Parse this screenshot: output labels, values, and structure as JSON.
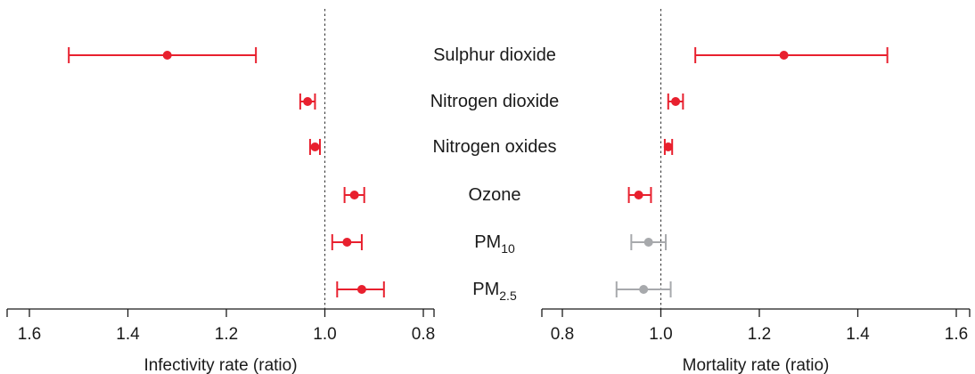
{
  "chart_data": {
    "type": "scatter",
    "categories": [
      {
        "label": "Sulphur dioxide"
      },
      {
        "label": "Nitrogen dioxide"
      },
      {
        "label": "Nitrogen oxides"
      },
      {
        "label": "Ozone"
      },
      {
        "label": "PM",
        "sub": "10"
      },
      {
        "label": "PM",
        "sub": "2.5"
      }
    ],
    "panels": [
      {
        "xlabel": "Infectivity rate (ratio)",
        "axis_reversed": true,
        "xlim": [
          0.8,
          1.6
        ],
        "ticks": [
          {
            "value": 1.6,
            "label": "1.6"
          },
          {
            "value": 1.4,
            "label": "1.4"
          },
          {
            "value": 1.2,
            "label": "1.2"
          },
          {
            "value": 1.0,
            "label": "1.0"
          },
          {
            "value": 0.8,
            "label": "0.8"
          }
        ],
        "reference_line": 1.0,
        "estimates": [
          {
            "value": 1.32,
            "lower": 1.14,
            "upper": 1.52,
            "significant": true
          },
          {
            "value": 1.035,
            "lower": 1.02,
            "upper": 1.05,
            "significant": true
          },
          {
            "value": 1.02,
            "lower": 1.01,
            "upper": 1.03,
            "significant": true
          },
          {
            "value": 0.94,
            "lower": 0.92,
            "upper": 0.96,
            "significant": true
          },
          {
            "value": 0.955,
            "lower": 0.925,
            "upper": 0.985,
            "significant": true
          },
          {
            "value": 0.925,
            "lower": 0.88,
            "upper": 0.975,
            "significant": true
          }
        ]
      },
      {
        "xlabel": "Mortality rate (ratio)",
        "axis_reversed": false,
        "xlim": [
          0.8,
          1.6
        ],
        "ticks": [
          {
            "value": 0.8,
            "label": "0.8"
          },
          {
            "value": 1.0,
            "label": "1.0"
          },
          {
            "value": 1.2,
            "label": "1.2"
          },
          {
            "value": 1.4,
            "label": "1.4"
          },
          {
            "value": 1.6,
            "label": "1.6"
          }
        ],
        "reference_line": 1.0,
        "estimates": [
          {
            "value": 1.25,
            "lower": 1.07,
            "upper": 1.46,
            "significant": true
          },
          {
            "value": 1.03,
            "lower": 1.015,
            "upper": 1.045,
            "significant": true
          },
          {
            "value": 1.015,
            "lower": 1.008,
            "upper": 1.023,
            "significant": true
          },
          {
            "value": 0.955,
            "lower": 0.935,
            "upper": 0.98,
            "significant": true
          },
          {
            "value": 0.975,
            "lower": 0.94,
            "upper": 1.01,
            "significant": false
          },
          {
            "value": 0.965,
            "lower": 0.91,
            "upper": 1.02,
            "significant": false
          }
        ]
      }
    ],
    "colors": {
      "significant": "#e8202e",
      "not_significant": "#a7a9ac",
      "axis": "#1a1a1a",
      "reference": "#444444"
    }
  }
}
